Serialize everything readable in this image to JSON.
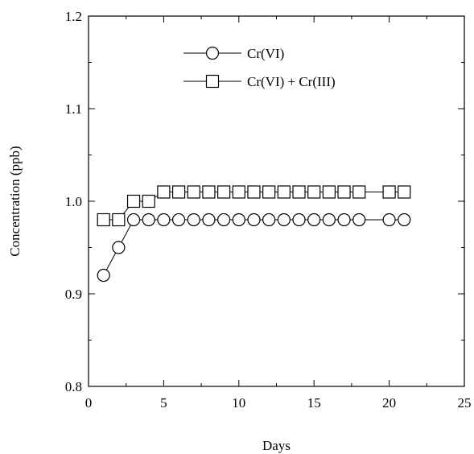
{
  "chart_data": {
    "type": "line",
    "title": "",
    "xlabel": "Days",
    "ylabel": "Concentration (ppb)",
    "xlim": [
      0,
      25
    ],
    "ylim": [
      0.8,
      1.2
    ],
    "xticks": [
      0,
      5,
      10,
      15,
      20,
      25
    ],
    "xtick_labels": [
      "0",
      "5",
      "10",
      "15",
      "20",
      "25"
    ],
    "yticks": [
      0.8,
      0.9,
      1.0,
      1.1,
      1.2
    ],
    "ytick_labels": [
      "0.8",
      "0.9",
      "1.0",
      "1.1",
      "1.2"
    ],
    "grid": false,
    "legend_position": "top-center",
    "series": [
      {
        "name": "Cr(VI)",
        "marker": "circle",
        "color": "#000000",
        "x": [
          1,
          2,
          3,
          4,
          5,
          6,
          7,
          8,
          9,
          10,
          11,
          12,
          13,
          14,
          15,
          16,
          17,
          18,
          20,
          21
        ],
        "y": [
          0.92,
          0.95,
          0.98,
          0.98,
          0.98,
          0.98,
          0.98,
          0.98,
          0.98,
          0.98,
          0.98,
          0.98,
          0.98,
          0.98,
          0.98,
          0.98,
          0.98,
          0.98,
          0.98,
          0.98
        ]
      },
      {
        "name": "Cr(VI) + Cr(III)",
        "marker": "square",
        "color": "#000000",
        "x": [
          1,
          2,
          3,
          4,
          5,
          6,
          7,
          8,
          9,
          10,
          11,
          12,
          13,
          14,
          15,
          16,
          17,
          18,
          20,
          21
        ],
        "y": [
          0.98,
          0.98,
          1.0,
          1.0,
          1.01,
          1.01,
          1.01,
          1.01,
          1.01,
          1.01,
          1.01,
          1.01,
          1.01,
          1.01,
          1.01,
          1.01,
          1.01,
          1.01,
          1.01,
          1.01
        ]
      }
    ]
  }
}
